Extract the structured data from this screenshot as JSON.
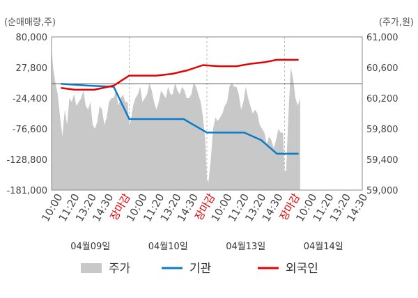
{
  "chart_data": {
    "type": "line",
    "left_axis_title": "(순매매량,주)",
    "right_axis_title": "(주가,원)",
    "left_ticks": [
      "80,000",
      "27,800",
      "-24,400",
      "-76,600",
      "-128,800",
      "-181,000"
    ],
    "right_ticks": [
      "61,000",
      "60,600",
      "60,200",
      "59,800",
      "59,400",
      "59,000"
    ],
    "left_range": [
      -181000,
      80000
    ],
    "right_range": [
      59000,
      61000
    ],
    "x_labels": [
      {
        "text": "10:00",
        "red": false
      },
      {
        "text": "11:20",
        "red": false
      },
      {
        "text": "13:20",
        "red": false
      },
      {
        "text": "14:30",
        "red": false
      },
      {
        "text": "장마감",
        "red": true
      },
      {
        "text": "10:00",
        "red": false
      },
      {
        "text": "11:20",
        "red": false
      },
      {
        "text": "13:20",
        "red": false
      },
      {
        "text": "14:30",
        "red": false
      },
      {
        "text": "장마감",
        "red": true
      },
      {
        "text": "10:00",
        "red": false
      },
      {
        "text": "11:20",
        "red": false
      },
      {
        "text": "13:20",
        "red": false
      },
      {
        "text": "14:30",
        "red": false
      },
      {
        "text": "장마감",
        "red": true
      },
      {
        "text": "10:00",
        "red": false
      },
      {
        "text": "11:20",
        "red": false
      },
      {
        "text": "13:20",
        "red": false
      },
      {
        "text": "14:30",
        "red": false
      }
    ],
    "dates": [
      {
        "text": "04월09일",
        "day": 0
      },
      {
        "text": "04월10일",
        "day": 1
      },
      {
        "text": "04월13일",
        "day": 2
      },
      {
        "text": "04월14일",
        "day": 3
      }
    ],
    "series": [
      {
        "name": "주가",
        "kind": "area",
        "color": "#c8c8c8",
        "x": [
          0,
          0.02,
          0.05,
          0.08,
          0.11,
          0.14,
          0.17,
          0.2,
          0.23,
          0.26,
          0.29,
          0.32,
          0.35,
          0.38,
          0.41,
          0.44,
          0.47,
          0.5,
          0.53,
          0.56,
          0.59,
          0.62,
          0.65,
          0.68,
          0.71,
          0.74,
          0.77,
          0.8,
          0.83,
          0.86,
          0.89,
          0.92,
          0.95,
          0.98,
          1.0,
          1.02,
          1.05,
          1.08,
          1.11,
          1.14,
          1.17,
          1.2,
          1.23,
          1.26,
          1.29,
          1.32,
          1.35,
          1.38,
          1.41,
          1.44,
          1.47,
          1.5,
          1.53,
          1.56,
          1.59,
          1.62,
          1.65,
          1.68,
          1.71,
          1.74,
          1.77,
          1.8,
          1.83,
          1.86,
          1.89,
          1.92,
          1.95,
          1.98,
          2.0,
          2.02,
          2.05,
          2.08,
          2.11,
          2.14,
          2.17,
          2.2,
          2.23,
          2.26,
          2.29,
          2.32,
          2.35,
          2.38,
          2.41,
          2.44,
          2.47,
          2.5,
          2.53,
          2.56,
          2.59,
          2.62,
          2.65,
          2.68,
          2.71,
          2.74,
          2.77,
          2.8,
          2.83,
          2.86,
          2.89,
          2.92,
          2.95,
          2.98,
          3.0,
          3.02,
          3.05,
          3.08,
          3.11,
          3.14,
          3.17,
          3.2
        ],
        "values": [
          60850,
          60600,
          60400,
          60250,
          59950,
          59700,
          60050,
          59850,
          60200,
          60150,
          60250,
          60100,
          60150,
          60200,
          60300,
          60100,
          60050,
          60150,
          59850,
          59800,
          59900,
          60100,
          60050,
          59850,
          59950,
          60150,
          60200,
          60200,
          60300,
          60100,
          60200,
          60250,
          60150,
          60150,
          59850,
          59900,
          60100,
          60200,
          60250,
          60350,
          60150,
          60200,
          60250,
          60400,
          60300,
          60150,
          60050,
          60150,
          60300,
          60250,
          60200,
          60350,
          60250,
          60250,
          60400,
          60300,
          60250,
          60350,
          60300,
          60200,
          60200,
          60250,
          60400,
          60350,
          60250,
          60150,
          59950,
          59650,
          59150,
          59100,
          59400,
          59800,
          59950,
          59900,
          59950,
          60000,
          60100,
          60150,
          60350,
          60400,
          60350,
          60350,
          60250,
          60050,
          60150,
          60350,
          60200,
          60100,
          60000,
          60050,
          60000,
          59850,
          59800,
          59750,
          59600,
          59700,
          59650,
          59550,
          59650,
          59800,
          59750,
          59750,
          59250,
          59250,
          60000,
          60600,
          60450,
          60200,
          60100,
          60200
        ]
      },
      {
        "name": "기관",
        "kind": "line",
        "axis": "left",
        "color": "#0a7bc8",
        "x": [
          0.12,
          0.48,
          0.8,
          1.0,
          1.7,
          2.0,
          2.48,
          2.7,
          2.9,
          3.18
        ],
        "values": [
          0,
          -3000,
          -5000,
          -60000,
          -60000,
          -83000,
          -83000,
          -96000,
          -119000,
          -119000
        ]
      },
      {
        "name": "외국인",
        "kind": "line",
        "axis": "left",
        "color": "#e60000",
        "x": [
          0.12,
          0.3,
          0.55,
          0.8,
          1.0,
          1.35,
          1.55,
          1.75,
          1.95,
          2.15,
          2.38,
          2.55,
          2.75,
          2.9,
          3.18
        ],
        "values": [
          -7000,
          -10000,
          -10000,
          -3000,
          14000,
          14000,
          17000,
          23000,
          32000,
          30000,
          30000,
          34000,
          37000,
          41000,
          41000
        ]
      }
    ],
    "legend": [
      {
        "name": "주가",
        "kind": "area",
        "color": "#c8c8c8"
      },
      {
        "name": "기관",
        "kind": "line",
        "color": "#0a7bc8"
      },
      {
        "name": "외국인",
        "kind": "line",
        "color": "#e60000"
      }
    ],
    "grid": "vertical-dashed"
  }
}
